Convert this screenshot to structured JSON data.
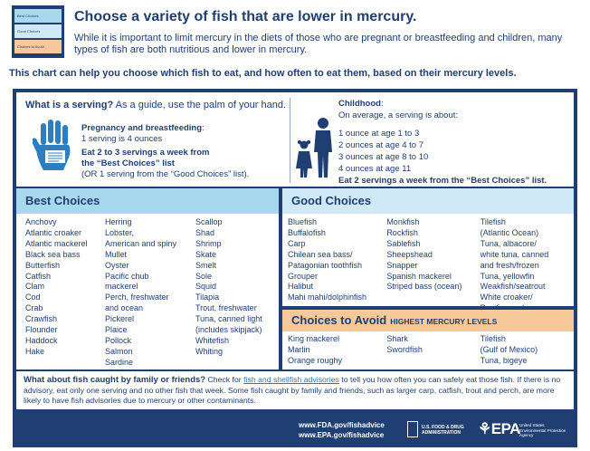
{
  "header": {
    "legend": [
      "Best Choices",
      "Good Choices",
      "Choices to Avoid"
    ],
    "title": "Choose a variety of fish that are lower in mercury.",
    "intro": "While it is important to limit mercury in the diets of those who are pregnant or breastfeeding and children, many types of fish are both nutritious and lower in mercury.",
    "chart_note": "This chart can help you choose which fish to eat, and how often to eat them, based on their mercury levels."
  },
  "serving": {
    "title_bold": "What is a serving?",
    "title_rest": " As a guide, use the palm of your hand.",
    "preg_head": "Pregnancy and breastfeeding",
    "preg_colon": ":",
    "preg_line1": "1 serving is 4 ounces",
    "preg_eat": "Eat 2 to 3 servings a week from the “Best Choices” list",
    "preg_or": "(OR 1 serving from the “Good Choices” list).",
    "child_head": "Childhood",
    "child_colon": ":",
    "child_intro": "On average, a serving is about:",
    "child_ages": [
      "1 ounce at age 1 to 3",
      "2 ounces at age 4 to 7",
      "3 ounces at age 8 to 10",
      "4 ounces at age 11"
    ],
    "child_eat": "Eat 2 servings a week from the “Best Choices” list."
  },
  "best": {
    "title": "Best Choices",
    "col1": [
      "Anchovy",
      "Atlantic croaker",
      "Atlantic mackerel",
      "Black sea bass",
      "Butterfish",
      "Catfish",
      "Clam",
      "Cod",
      "Crab",
      "Crawfish",
      "Flounder",
      "Haddock",
      "Hake"
    ],
    "col2": [
      "Herring",
      "Lobster,",
      "American and spiny",
      "Mullet",
      "Oyster",
      "Pacific chub",
      "mackerel",
      "Perch, freshwater",
      "and ocean",
      "Pickerel",
      "Plaice",
      "Pollock",
      "Salmon",
      "Sardine"
    ],
    "col3": [
      "Scallop",
      "Shad",
      "Shrimp",
      "Skate",
      "Smelt",
      "Sole",
      "Squid",
      "Tilapia",
      "Trout, freshwater",
      "Tuna, canned light",
      "(includes skipjack)",
      "Whitefish",
      "Whiting"
    ]
  },
  "good": {
    "title": "Good Choices",
    "col1": [
      "Bluefish",
      "Buffalofish",
      "Carp",
      "Chilean sea bass/",
      "Patagonian toothfish",
      "Grouper",
      "Halibut",
      "Mahi mahi/dolphinfish"
    ],
    "col2": [
      "Monkfish",
      "Rockfish",
      "Sablefish",
      "Sheepshead",
      "Snapper",
      "Spanish mackerel",
      "Striped bass (ocean)"
    ],
    "col3": [
      "Tilefish",
      "(Atlantic Ocean)",
      "Tuna, albacore/",
      "white tuna, canned",
      "and fresh/frozen",
      "Tuna, yellowfin",
      "Weakfish/seatrout",
      "White croaker/",
      "Pacific croaker"
    ]
  },
  "avoid": {
    "title": "Choices to Avoid",
    "subtitle": "HIGHEST MERCURY LEVELS",
    "col1": [
      "King mackerel",
      "Marlin",
      "Orange roughy"
    ],
    "col2": [
      "Shark",
      "Swordfish"
    ],
    "col3": [
      "Tilefish",
      "(Gulf of Mexico)",
      "Tuna, bigeye"
    ]
  },
  "family": {
    "question": "What about fish caught by family or friends?",
    "check": " Check for ",
    "link": "fish and shellfish advisories",
    "rest1": " to tell you how often you can safely eat those",
    "rest2": "fish. If there is no advisory, eat only one serving and no other fish that week. Some fish caught by family and friends, such as larger carp, catfish, trout and perch, are more likely to have fish advisories due to mercury or other contaminants."
  },
  "footer": {
    "url1": "www.FDA.gov/fishadvice",
    "url2": "www.EPA.gov/fishadvice",
    "fda_text1": "U.S. FOOD & DRUG",
    "fda_text2": "ADMINISTRATION",
    "epa_logo": "⚘EPA",
    "epa_text1": "United States",
    "epa_text2": "Environmental Protection",
    "epa_text3": "Agency"
  },
  "colors": {
    "navy": "#1f3f73",
    "best": "#a8d8ee",
    "good": "#cfe9f6",
    "avoid": "#f6c89a",
    "link": "#2a7ab8"
  },
  "icons": [
    "hand-icon",
    "children-icon",
    "fda-logo",
    "epa-logo"
  ]
}
